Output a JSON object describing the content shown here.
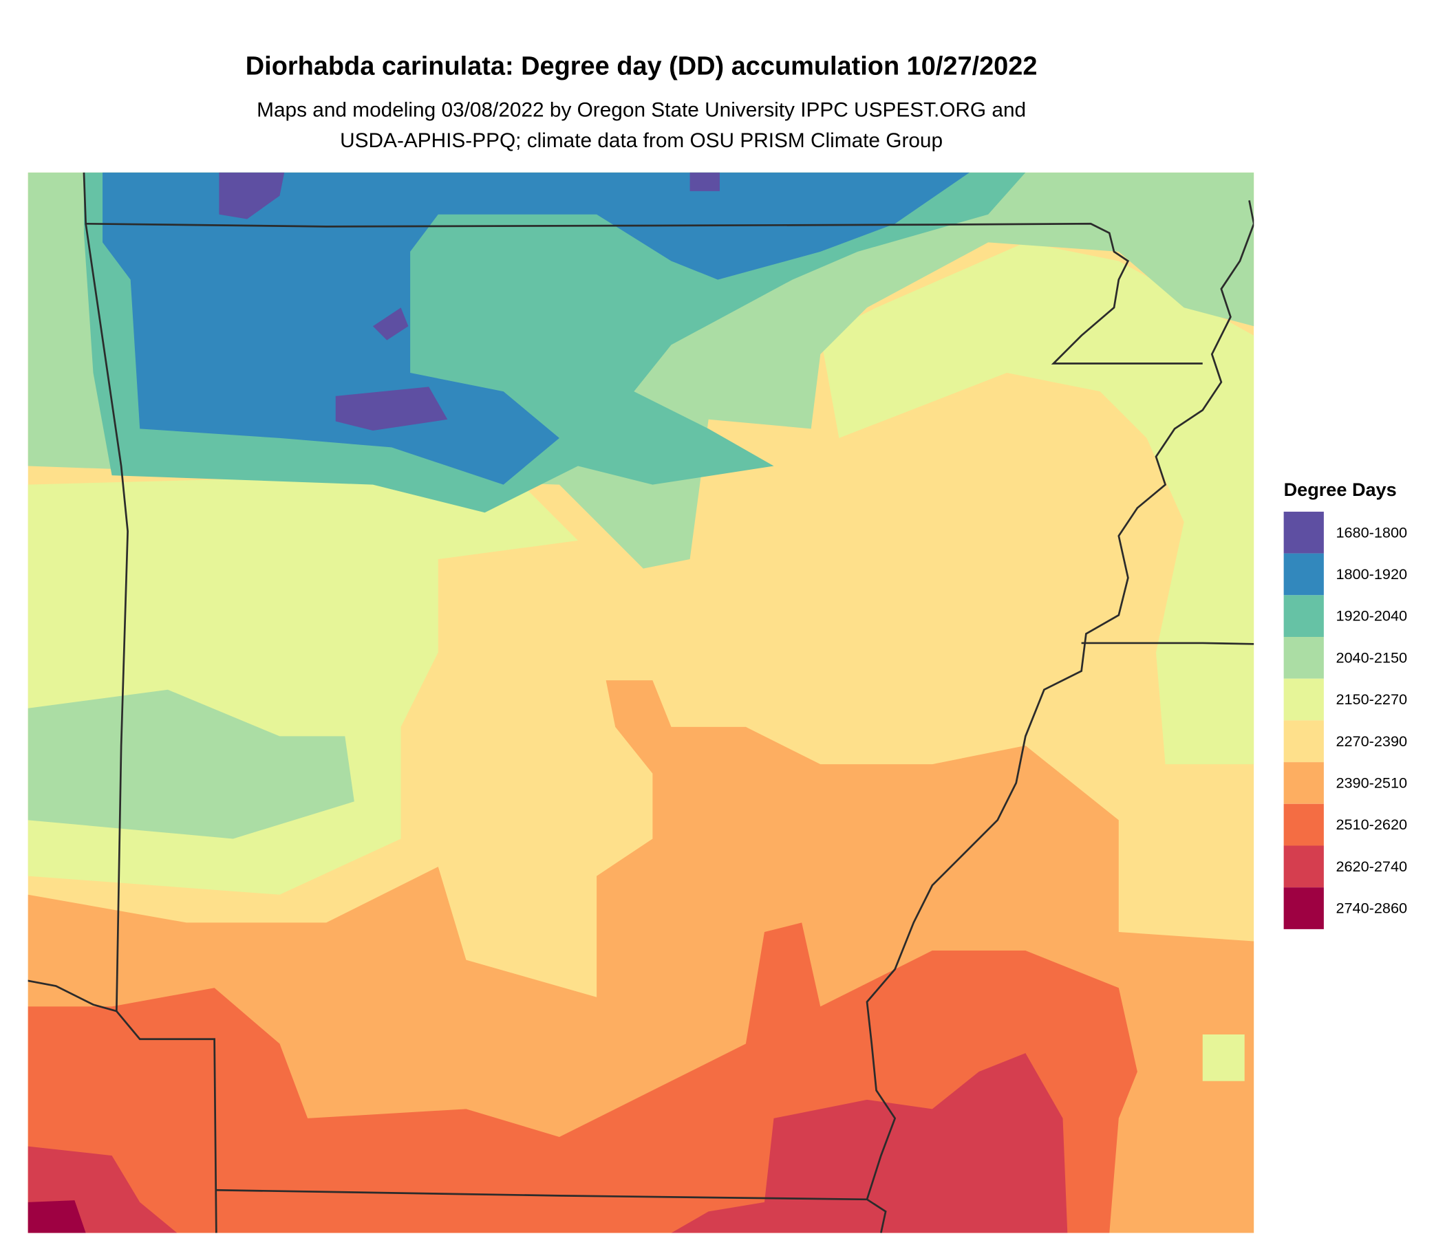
{
  "title": "Diorhabda carinulata: Degree day (DD) accumulation 10/27/2022",
  "subtitle": [
    "Maps and modeling 03/08/2022 by Oregon State University IPPC USPEST.ORG and",
    "USDA-APHIS-PPQ; climate data from OSU PRISM Climate Group"
  ],
  "legend": {
    "title": "Degree Days",
    "items": [
      {
        "label": "1680-1800",
        "color": "#5e4fa2"
      },
      {
        "label": "1800-1920",
        "color": "#3288bd"
      },
      {
        "label": "1920-2040",
        "color": "#66c2a5"
      },
      {
        "label": "2040-2150",
        "color": "#abdda4"
      },
      {
        "label": "2150-2270",
        "color": "#e6f598"
      },
      {
        "label": "2270-2390",
        "color": "#fee08b"
      },
      {
        "label": "2390-2510",
        "color": "#fdae61"
      },
      {
        "label": "2510-2620",
        "color": "#f46d43"
      },
      {
        "label": "2620-2740",
        "color": "#d53e4f"
      },
      {
        "label": "2740-2860",
        "color": "#9e0142"
      }
    ]
  }
}
